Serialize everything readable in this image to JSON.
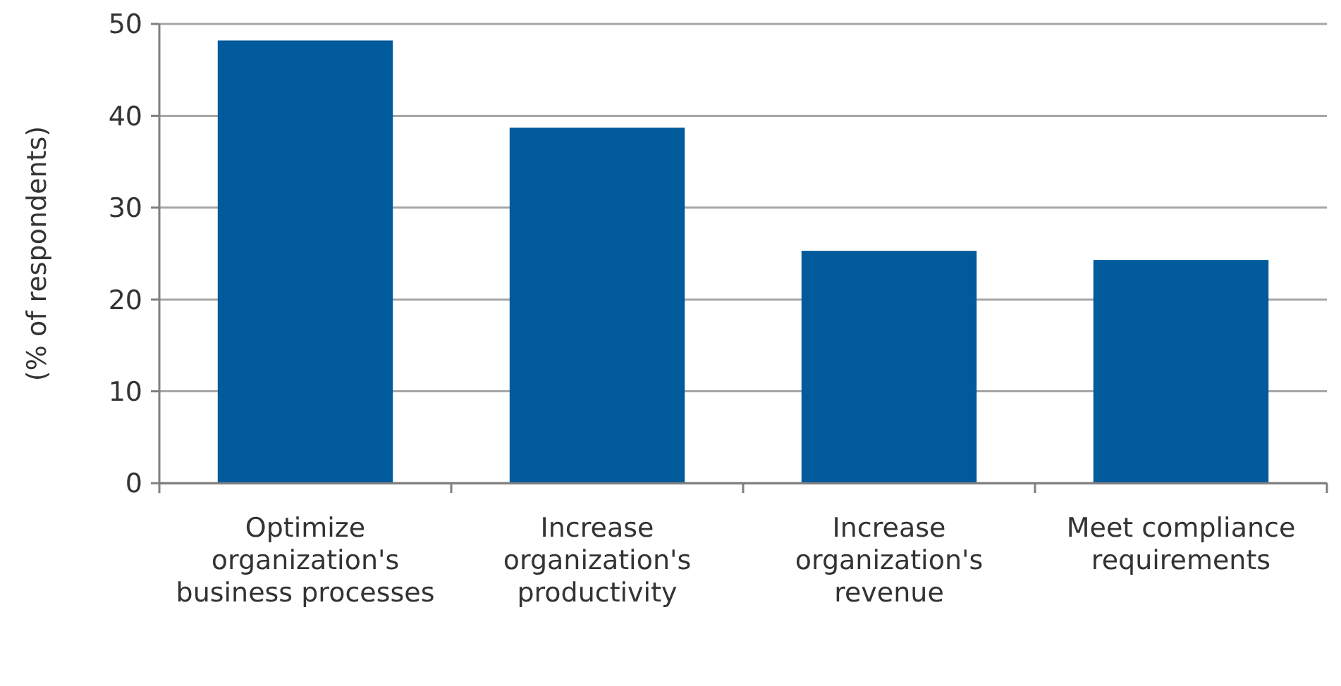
{
  "chart_data": {
    "type": "bar",
    "ylabel": "(% of respondents)",
    "categories": [
      "Optimize organization's business processes",
      "Increase organization's productivity",
      "Increase organization's revenue",
      "Meet compliance requirements"
    ],
    "values": [
      48.2,
      38.7,
      25.3,
      24.3
    ],
    "color": "#005a9c",
    "ylim": [
      0,
      50
    ],
    "yticks": [
      0,
      10,
      20,
      30,
      40,
      50
    ],
    "grid": "y"
  }
}
